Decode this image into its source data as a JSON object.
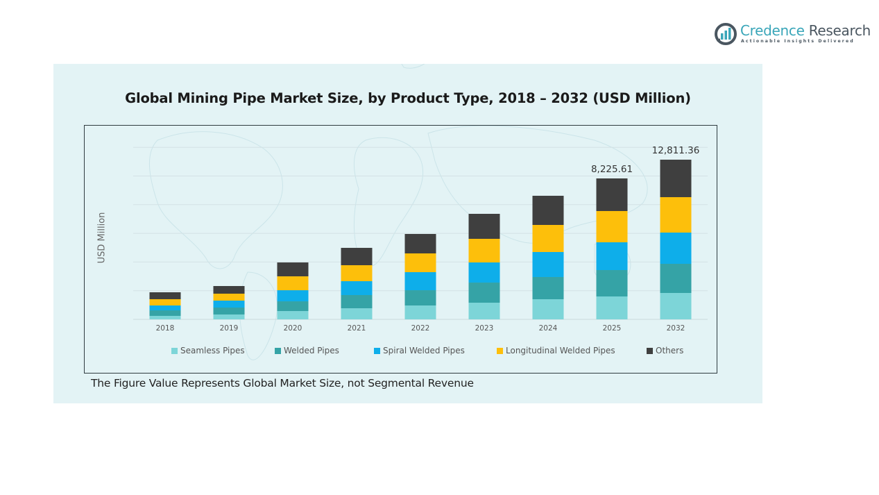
{
  "brand": {
    "name_part1": "Credence",
    "name_part2": " Research",
    "tagline": "Actionable Insights Delivered",
    "color_primary": "#3aa6b9",
    "color_secondary": "#4a5660"
  },
  "footnote": "The Figure Value Represents Global Market Size, not Segmental Revenue",
  "chart_data": {
    "type": "bar",
    "stacked": true,
    "title": "Global Mining Pipe Market Size, by Product Type, 2018 – 2032 (USD Million)",
    "xlabel": "",
    "ylabel": "USD Million",
    "categories": [
      "2018",
      "2019",
      "2020",
      "2021",
      "2022",
      "2023",
      "2024",
      "2025",
      "2032"
    ],
    "series": [
      {
        "name": "Seamless Pipes",
        "color": "#7dd5d8",
        "values": [
          203,
          284,
          486,
          648,
          810,
          972,
          1175,
          1337,
          2117
        ]
      },
      {
        "name": "Welded Pipes",
        "color": "#35a3a6",
        "values": [
          324,
          405,
          567,
          770,
          891,
          1175,
          1297,
          1540,
          2339
        ]
      },
      {
        "name": "Spiral Welded Pipes",
        "color": "#0eaeea",
        "values": [
          284,
          405,
          648,
          810,
          1054,
          1175,
          1459,
          1621,
          2507
        ]
      },
      {
        "name": "Longitudinal Welded Pipes",
        "color": "#fdbf0b",
        "values": [
          365,
          405,
          810,
          932,
          1094,
          1378,
          1580,
          1824,
          2841
        ]
      },
      {
        "name": "Others",
        "color": "#3f3f3f",
        "values": [
          405,
          446,
          810,
          1013,
          1135,
          1459,
          1702,
          1904,
          3007
        ]
      }
    ],
    "data_labels": [
      {
        "category": "2025",
        "text": "8,225.61"
      },
      {
        "category": "2032",
        "text": "12,811.36"
      }
    ],
    "grid": true,
    "legend": "bottom",
    "y_ticks_shown": false,
    "gridline_count": 6
  }
}
